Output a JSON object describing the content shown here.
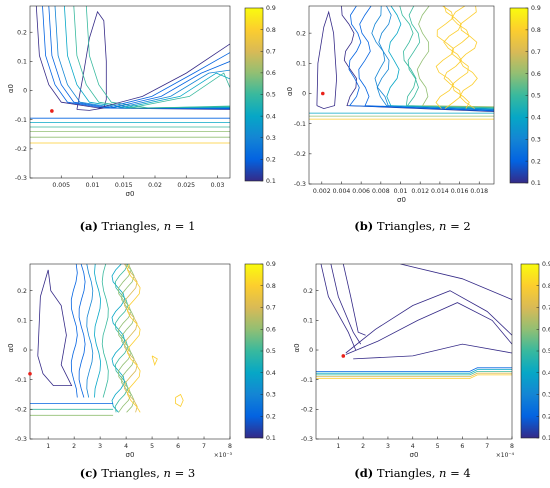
{
  "figure": {
    "panels": [
      {
        "caption": {
          "label": "(a)",
          "text": " Triangles, ",
          "n_label": "n",
          "n_text": " = 1"
        },
        "chart_data": {
          "type": "contour",
          "xlabel": "σ0",
          "ylabel": "α0",
          "xlim": [
            0,
            0.032
          ],
          "ylim": [
            -0.3,
            0.29
          ],
          "xticks": [
            0.005,
            0.01,
            0.015,
            0.02,
            0.025,
            0.03
          ],
          "xtick_labels": [
            "0.005",
            "0.01",
            "0.015",
            "0.02",
            "0.025",
            "0.03"
          ],
          "yticks": [
            -0.3,
            -0.2,
            -0.1,
            0,
            0.1,
            0.2
          ],
          "ytick_labels": [
            "-0.3",
            "-0.2",
            "-0.1",
            "0",
            "0.1",
            "0.2"
          ],
          "x_multiplier": "",
          "marker": {
            "x": 0.0035,
            "y": -0.07,
            "color": "#e8211a"
          },
          "colorbar": {
            "ticks": [
              0.1,
              0.2,
              0.3,
              0.4,
              0.5,
              0.6,
              0.7,
              0.8,
              0.9
            ],
            "labels": [
              "0.1",
              "0.2",
              "0.3",
              "0.4",
              "0.5",
              "0.6",
              "0.7",
              "0.8",
              "0.9"
            ],
            "colormap": "parula"
          }
        }
      },
      {
        "caption": {
          "label": "(b)",
          "text": " Triangles, ",
          "n_label": "n",
          "n_text": " = 2"
        },
        "chart_data": {
          "type": "contour",
          "xlabel": "σ0",
          "ylabel": "α0",
          "xlim": [
            0.0007,
            0.0195
          ],
          "ylim": [
            -0.3,
            0.29
          ],
          "xticks": [
            0.002,
            0.004,
            0.006,
            0.008,
            0.01,
            0.012,
            0.014,
            0.016,
            0.018
          ],
          "xtick_labels": [
            "0.002",
            "0.004",
            "0.006",
            "0.008",
            "0.01",
            "0.012",
            "0.014",
            "0.016",
            "0.018"
          ],
          "yticks": [
            -0.3,
            -0.2,
            -0.1,
            0,
            0.1,
            0.2
          ],
          "ytick_labels": [
            "-0.3",
            "-0.2",
            "-0.1",
            "0",
            "0.1",
            "0.2"
          ],
          "x_multiplier": "",
          "marker": {
            "x": 0.0021,
            "y": 0.0,
            "color": "#e8211a"
          },
          "colorbar": {
            "ticks": [
              0.1,
              0.2,
              0.3,
              0.4,
              0.5,
              0.6,
              0.7,
              0.8,
              0.9
            ],
            "labels": [
              "0.1",
              "0.2",
              "0.3",
              "0.4",
              "0.5",
              "0.6",
              "0.7",
              "0.8",
              "0.9"
            ],
            "colormap": "parula"
          }
        }
      },
      {
        "caption": {
          "label": "(c)",
          "text": " Triangles, ",
          "n_label": "n",
          "n_text": " = 3"
        },
        "chart_data": {
          "type": "contour",
          "xlabel": "σ0",
          "ylabel": "α0",
          "xlim": [
            0.3,
            8
          ],
          "ylim": [
            -0.3,
            0.29
          ],
          "xticks": [
            1,
            2,
            3,
            4,
            5,
            6,
            7,
            8
          ],
          "xtick_labels": [
            "1",
            "2",
            "3",
            "4",
            "5",
            "6",
            "7",
            "8"
          ],
          "yticks": [
            -0.3,
            -0.2,
            -0.1,
            0,
            0.1,
            0.2
          ],
          "ytick_labels": [
            "-0.3",
            "-0.2",
            "-0.1",
            "0",
            "0.1",
            "0.2"
          ],
          "x_multiplier": "×10⁻³",
          "marker": {
            "x": 0.3,
            "y": -0.08,
            "color": "#e8211a"
          },
          "colorbar": {
            "ticks": [
              0.1,
              0.2,
              0.3,
              0.4,
              0.5,
              0.6,
              0.7,
              0.8,
              0.9
            ],
            "labels": [
              "0.1",
              "0.2",
              "0.3",
              "0.4",
              "0.5",
              "0.6",
              "0.7",
              "0.8",
              "0.9"
            ],
            "colormap": "parula"
          }
        }
      },
      {
        "caption": {
          "label": "(d)",
          "text": " Triangles, ",
          "n_label": "n",
          "n_text": " = 4"
        },
        "chart_data": {
          "type": "contour",
          "xlabel": "σ0",
          "ylabel": "α0",
          "xlim": [
            0.1,
            8
          ],
          "ylim": [
            -0.3,
            0.29
          ],
          "xticks": [
            1,
            2,
            3,
            4,
            5,
            6,
            7,
            8
          ],
          "xtick_labels": [
            "1",
            "2",
            "3",
            "4",
            "5",
            "6",
            "7",
            "8"
          ],
          "yticks": [
            -0.3,
            -0.2,
            -0.1,
            0,
            0.1,
            0.2
          ],
          "ytick_labels": [
            "-0.3",
            "-0.2",
            "-0.1",
            "0",
            "0.1",
            "0.2"
          ],
          "x_multiplier": "×10⁻⁴",
          "marker": {
            "x": 1.2,
            "y": -0.02,
            "color": "#e8211a"
          },
          "colorbar": {
            "ticks": [
              0.1,
              0.2,
              0.3,
              0.4,
              0.5,
              0.6,
              0.7,
              0.8,
              0.9
            ],
            "labels": [
              "0.1",
              "0.2",
              "0.3",
              "0.4",
              "0.5",
              "0.6",
              "0.7",
              "0.8",
              "0.9"
            ],
            "colormap": "parula"
          }
        }
      }
    ]
  }
}
